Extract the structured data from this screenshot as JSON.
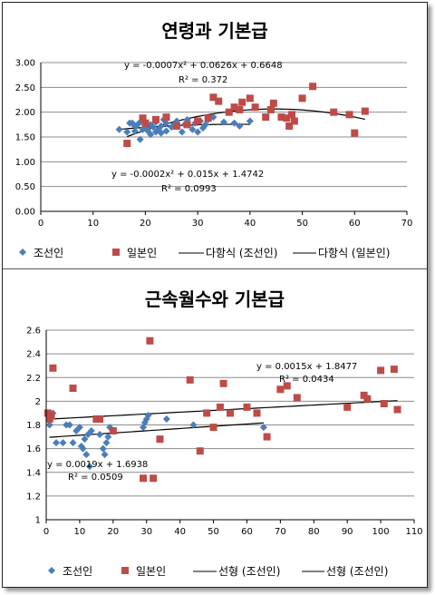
{
  "chart_data": [
    {
      "type": "scatter",
      "title": "연령과 기본급",
      "xlim": [
        0,
        70
      ],
      "ylim": [
        0,
        3
      ],
      "x_ticks": [
        "0",
        "10",
        "20",
        "30",
        "40",
        "50",
        "60",
        "70"
      ],
      "y_ticks": [
        "0.00",
        "0.50",
        "1.00",
        "1.50",
        "2.00",
        "2.50",
        "3.00"
      ],
      "grid": true,
      "legend_position": "bottom",
      "series": [
        {
          "name": "조선인",
          "marker": "diamond",
          "color": "#4a7ebb",
          "x": [
            15,
            16.5,
            17,
            17.5,
            18,
            18,
            18.5,
            19,
            19,
            19.5,
            20,
            20,
            20.5,
            21,
            21,
            21.5,
            22,
            22,
            22.5,
            23,
            23,
            23.5,
            24,
            24,
            25,
            25.5,
            26,
            27,
            27.5,
            28,
            29,
            29.5,
            30,
            30.5,
            31,
            31.5,
            32,
            33,
            35,
            37,
            38,
            40
          ],
          "y": [
            1.65,
            1.6,
            1.78,
            1.78,
            1.72,
            1.62,
            1.75,
            1.45,
            1.8,
            1.65,
            1.7,
            1.78,
            1.62,
            1.55,
            1.75,
            1.7,
            1.6,
            1.8,
            1.65,
            1.58,
            1.72,
            1.85,
            1.62,
            1.78,
            1.7,
            1.75,
            1.82,
            1.6,
            1.75,
            1.85,
            1.65,
            1.78,
            1.6,
            1.82,
            1.68,
            1.75,
            1.85,
            1.9,
            1.8,
            1.78,
            1.72,
            1.82
          ]
        },
        {
          "name": "일본인",
          "marker": "square",
          "color": "#be4b48",
          "x": [
            16.5,
            19.5,
            20,
            22,
            24,
            26,
            28,
            30,
            32,
            33,
            34,
            36,
            37,
            38,
            38.5,
            40,
            41,
            43,
            44,
            44.5,
            46,
            47,
            47.5,
            48,
            48.5,
            50,
            52,
            56,
            59,
            60,
            62
          ],
          "y": [
            1.37,
            1.88,
            1.78,
            1.85,
            1.9,
            1.72,
            1.75,
            1.82,
            1.88,
            2.3,
            2.22,
            2.0,
            2.1,
            2.05,
            2.2,
            2.28,
            2.1,
            1.9,
            2.05,
            2.18,
            1.9,
            1.88,
            1.72,
            1.95,
            1.82,
            2.28,
            2.52,
            2.0,
            1.95,
            1.58,
            2.02
          ]
        }
      ],
      "trendlines": [
        {
          "name": "다항식 (조선인)",
          "type": "polynomial",
          "coefficients": [
            -0.0002,
            0.015,
            1.4742
          ],
          "equation": "y = -0.0002x² + 0.015x + 1.4742",
          "r2": "R² = 0.0993"
        },
        {
          "name": "다항식 (일본인)",
          "type": "polynomial",
          "coefficients": [
            -0.0007,
            0.0626,
            0.6648
          ],
          "equation": "y = -0.0007x² + 0.0626x + 0.6648",
          "r2": "R² = 0.372"
        }
      ]
    },
    {
      "type": "scatter",
      "title": "근속월수와 기본급",
      "xlim": [
        0,
        110
      ],
      "ylim": [
        1,
        2.6
      ],
      "x_ticks": [
        "0",
        "10",
        "20",
        "30",
        "40",
        "50",
        "60",
        "70",
        "80",
        "90",
        "100",
        "110"
      ],
      "y_ticks": [
        "1",
        "1.2",
        "1.4",
        "1.6",
        "1.8",
        "2",
        "2.2",
        "2.4",
        "2.6"
      ],
      "grid": true,
      "legend_position": "bottom",
      "series": [
        {
          "name": "조선인",
          "marker": "diamond",
          "color": "#4a7ebb",
          "x": [
            1,
            3,
            5,
            6,
            8,
            9,
            10,
            10.5,
            11,
            11.5,
            12,
            12.5,
            13,
            13.5,
            16,
            17,
            17.5,
            18,
            18.5,
            19,
            20,
            29,
            29.5,
            30,
            30.5,
            36,
            44,
            65,
            2,
            7
          ],
          "y": [
            1.8,
            1.65,
            1.65,
            1.8,
            1.65,
            1.75,
            1.78,
            1.62,
            1.6,
            1.68,
            1.55,
            1.72,
            1.45,
            1.75,
            1.72,
            1.6,
            1.55,
            1.65,
            1.7,
            1.78,
            1.75,
            1.78,
            1.82,
            1.85,
            1.88,
            1.85,
            1.8,
            1.78,
            1.9,
            1.8
          ]
        },
        {
          "name": "일본인",
          "marker": "square",
          "color": "#be4b48",
          "x": [
            0.5,
            1,
            1.5,
            2,
            8,
            15,
            16,
            20,
            29,
            31,
            32,
            34,
            43,
            46,
            48,
            50,
            52,
            53,
            55,
            60,
            63,
            66,
            70,
            72,
            75,
            90,
            95,
            96,
            100,
            101,
            104,
            105
          ],
          "y": [
            1.9,
            1.85,
            1.88,
            2.28,
            2.11,
            1.85,
            1.85,
            1.75,
            1.35,
            2.51,
            1.35,
            1.68,
            2.18,
            1.58,
            1.9,
            1.78,
            1.95,
            2.15,
            1.9,
            1.95,
            1.9,
            1.7,
            2.1,
            2.13,
            2.03,
            1.95,
            2.05,
            2.02,
            2.26,
            1.98,
            2.27,
            1.93
          ]
        }
      ],
      "trendlines": [
        {
          "name": "선형 (조선인)",
          "type": "linear",
          "coefficients": [
            0.0019,
            1.6938
          ],
          "equation": "y = 0.0019x + 1.6938",
          "r2": "R² = 0.0509"
        },
        {
          "name": "선형 (조선인)",
          "type": "linear",
          "coefficients": [
            0.0015,
            1.8477
          ],
          "equation": "y = 0.0015x + 1.8477",
          "r2": "R² = 0.0434"
        }
      ]
    }
  ]
}
